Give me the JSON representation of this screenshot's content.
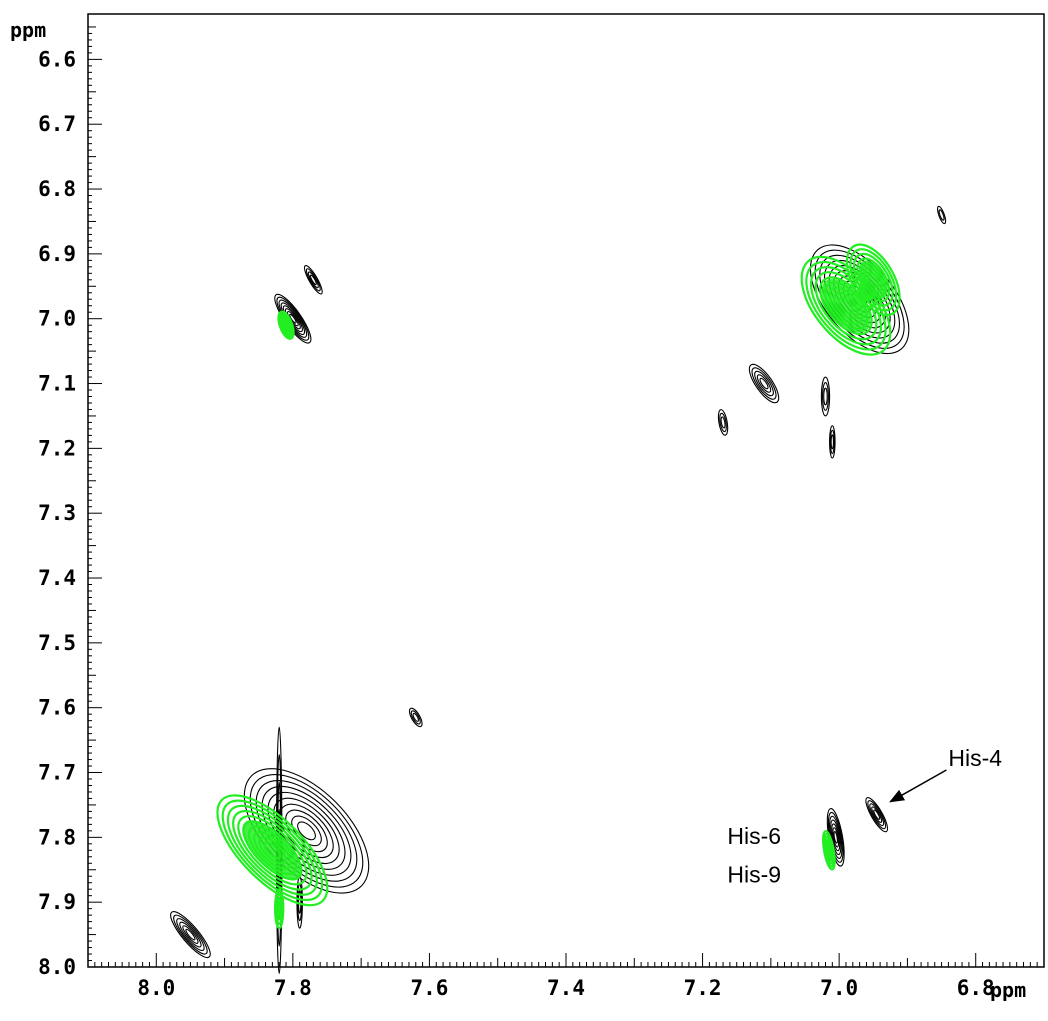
{
  "chart_data": {
    "type": "contour",
    "x_unit": "ppm",
    "y_unit": "ppm",
    "xlim": [
      8.1,
      6.7
    ],
    "ylim": [
      6.53,
      8.0
    ],
    "x_ticks": [
      "8.0",
      "7.8",
      "7.6",
      "7.4",
      "7.2",
      "7.0",
      "6.8"
    ],
    "y_ticks": [
      "6.6",
      "6.7",
      "6.8",
      "6.9",
      "7.0",
      "7.1",
      "7.2",
      "7.3",
      "7.4",
      "7.5",
      "7.6",
      "7.7",
      "7.8",
      "7.9",
      "8.0"
    ],
    "x_tick_values": [
      8.0,
      7.8,
      7.6,
      7.4,
      7.2,
      7.0,
      6.8
    ],
    "y_tick_values": [
      6.6,
      6.7,
      6.8,
      6.9,
      7.0,
      7.1,
      7.2,
      7.3,
      7.4,
      7.5,
      7.6,
      7.7,
      7.8,
      7.9,
      8.0
    ],
    "colors": {
      "spectrum_a": "#000000",
      "spectrum_b": "#22ee22"
    },
    "peaks": [
      {
        "spectrum": "spectrum_a",
        "x": 7.8,
        "y": 7.0,
        "sx": 0.012,
        "sy": 0.045,
        "angle": 35,
        "levels": 8
      },
      {
        "spectrum": "spectrum_a",
        "x": 7.77,
        "y": 6.94,
        "sx": 0.006,
        "sy": 0.025,
        "angle": 30,
        "levels": 4
      },
      {
        "spectrum": "spectrum_b",
        "x": 7.81,
        "y": 7.01,
        "sx": 0.009,
        "sy": 0.022,
        "angle": 20,
        "levels": 6
      },
      {
        "spectrum": "spectrum_a",
        "x": 6.97,
        "y": 6.97,
        "sx": 0.05,
        "sy": 0.1,
        "angle": 40,
        "levels": 10
      },
      {
        "spectrum": "spectrum_a",
        "x": 7.11,
        "y": 7.1,
        "sx": 0.012,
        "sy": 0.035,
        "angle": 35,
        "levels": 5
      },
      {
        "spectrum": "spectrum_a",
        "x": 7.17,
        "y": 7.16,
        "sx": 0.006,
        "sy": 0.02,
        "angle": 10,
        "levels": 3
      },
      {
        "spectrum": "spectrum_a",
        "x": 7.01,
        "y": 7.19,
        "sx": 0.004,
        "sy": 0.025,
        "angle": 0,
        "levels": 3
      },
      {
        "spectrum": "spectrum_a",
        "x": 7.02,
        "y": 7.12,
        "sx": 0.006,
        "sy": 0.03,
        "angle": 0,
        "levels": 3
      },
      {
        "spectrum": "spectrum_a",
        "x": 6.85,
        "y": 6.84,
        "sx": 0.004,
        "sy": 0.014,
        "angle": 20,
        "levels": 2
      },
      {
        "spectrum": "spectrum_b",
        "x": 6.99,
        "y": 6.98,
        "sx": 0.045,
        "sy": 0.09,
        "angle": 40,
        "levels": 9
      },
      {
        "spectrum": "spectrum_b",
        "x": 6.95,
        "y": 6.94,
        "sx": 0.03,
        "sy": 0.06,
        "angle": 30,
        "levels": 7
      },
      {
        "spectrum": "spectrum_a",
        "x": 7.62,
        "y": 7.615,
        "sx": 0.006,
        "sy": 0.016,
        "angle": 30,
        "levels": 3
      },
      {
        "spectrum": "spectrum_a",
        "x": 7.78,
        "y": 7.79,
        "sx": 0.06,
        "sy": 0.12,
        "angle": 45,
        "levels": 10
      },
      {
        "spectrum": "spectrum_a",
        "x": 7.95,
        "y": 7.95,
        "sx": 0.012,
        "sy": 0.045,
        "angle": 40,
        "levels": 6
      },
      {
        "spectrum": "spectrum_a",
        "x": 7.82,
        "y": 7.82,
        "sx": 0.004,
        "sy": 0.19,
        "angle": 0,
        "levels": 4
      },
      {
        "spectrum": "spectrum_a",
        "x": 7.79,
        "y": 7.9,
        "sx": 0.004,
        "sy": 0.04,
        "angle": 0,
        "levels": 3
      },
      {
        "spectrum": "spectrum_b",
        "x": 7.83,
        "y": 7.82,
        "sx": 0.045,
        "sy": 0.11,
        "angle": 45,
        "levels": 10
      },
      {
        "spectrum": "spectrum_b",
        "x": 7.82,
        "y": 7.91,
        "sx": 0.006,
        "sy": 0.03,
        "angle": 0,
        "levels": 4
      },
      {
        "spectrum": "spectrum_a",
        "x": 7.005,
        "y": 7.8,
        "sx": 0.01,
        "sy": 0.045,
        "angle": 10,
        "levels": 7
      },
      {
        "spectrum": "spectrum_a",
        "x": 6.945,
        "y": 7.765,
        "sx": 0.008,
        "sy": 0.03,
        "angle": 30,
        "levels": 5
      },
      {
        "spectrum": "spectrum_b",
        "x": 7.015,
        "y": 7.82,
        "sx": 0.007,
        "sy": 0.03,
        "angle": 10,
        "levels": 6
      }
    ],
    "annotations": [
      {
        "text": "His-4",
        "x": 6.84,
        "y": 7.69,
        "arrow_to": [
          6.925,
          7.745
        ]
      },
      {
        "text": "His-6",
        "x": 7.085,
        "y": 7.81
      },
      {
        "text": "His-9",
        "x": 7.085,
        "y": 7.87
      }
    ]
  }
}
